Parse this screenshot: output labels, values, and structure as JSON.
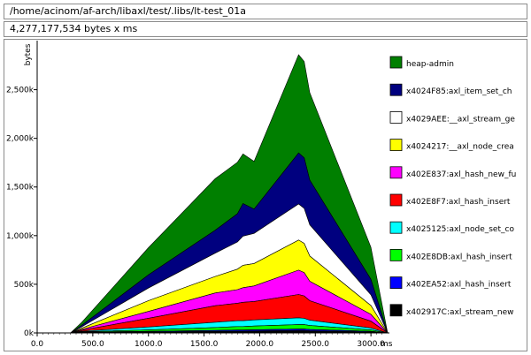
{
  "header": {
    "path": "/home/acinom/af-arch/libaxl/test/.libs/lt-test_01a",
    "total": "4,277,177,534 bytes x ms"
  },
  "colors": {
    "heap-admin": "#007f00",
    "x4024F85": "#00007f",
    "x4029AEE": "#ffffff",
    "x4024217": "#ffff00",
    "x402E837": "#ff00ff",
    "x402E8F7": "#ff0000",
    "x4025125": "#00ffff",
    "x402E8DB": "#00ff00",
    "x402EA52": "#0000ff",
    "x402917C": "#000000"
  },
  "chart_data": {
    "type": "area",
    "stacked": true,
    "title": "",
    "xlabel": "ms",
    "ylabel": "bytes",
    "xlim": [
      0,
      3150
    ],
    "ylim": [
      0,
      2950000
    ],
    "x_ticks": [
      "0.0",
      "500.0",
      "1000.0",
      "1500.0",
      "2000.0",
      "2500.0",
      "3000.0"
    ],
    "y_ticks": [
      "0k",
      "500k",
      "1,000k",
      "1,500k",
      "2,000k",
      "2,500k"
    ],
    "x_unit_label": "ms",
    "legend_position": "right",
    "x": [
      0,
      200,
      300,
      400,
      1000,
      1600,
      1800,
      1850,
      1950,
      2350,
      2400,
      2450,
      3000,
      3150
    ],
    "series": [
      {
        "name": "x402917C:axl_stream_new",
        "values": [
          0,
          0,
          0,
          5000,
          10000,
          15000,
          18000,
          18000,
          20000,
          25000,
          25000,
          22000,
          10000,
          0
        ]
      },
      {
        "name": "x402EA52:axl_hash_insert",
        "values": [
          0,
          0,
          0,
          3000,
          6000,
          10000,
          12000,
          12000,
          13000,
          15000,
          15000,
          14000,
          6000,
          0
        ]
      },
      {
        "name": "x402E8DB:axl_hash_insert",
        "values": [
          0,
          0,
          0,
          5000,
          15000,
          30000,
          35000,
          35000,
          38000,
          45000,
          45000,
          40000,
          15000,
          0
        ]
      },
      {
        "name": "x4025125:axl_node_set_co",
        "values": [
          0,
          0,
          0,
          5000,
          30000,
          55000,
          60000,
          60000,
          62000,
          70000,
          65000,
          55000,
          20000,
          0
        ]
      },
      {
        "name": "x402E8F7:axl_hash_insert",
        "values": [
          0,
          0,
          0,
          10000,
          90000,
          170000,
          180000,
          190000,
          190000,
          240000,
          230000,
          200000,
          70000,
          0
        ]
      },
      {
        "name": "x402E837:axl_hash_new_fu",
        "values": [
          0,
          0,
          0,
          8000,
          70000,
          130000,
          140000,
          150000,
          160000,
          250000,
          240000,
          200000,
          70000,
          0
        ]
      },
      {
        "name": "x4024217:__axl_node_crea",
        "values": [
          0,
          0,
          0,
          12000,
          110000,
          170000,
          210000,
          230000,
          230000,
          310000,
          300000,
          260000,
          90000,
          0
        ]
      },
      {
        "name": "x4029AEE:__axl_stream_ge",
        "values": [
          0,
          0,
          0,
          15000,
          130000,
          240000,
          280000,
          300000,
          310000,
          370000,
          360000,
          320000,
          110000,
          0
        ]
      },
      {
        "name": "x4024F85:axl_item_set_ch",
        "values": [
          0,
          0,
          0,
          15000,
          135000,
          235000,
          290000,
          335000,
          250000,
          525000,
          520000,
          460000,
          160000,
          0
        ]
      },
      {
        "name": "heap-admin",
        "values": [
          0,
          0,
          0,
          30000,
          280000,
          530000,
          530000,
          510000,
          490000,
          1010000,
          990000,
          900000,
          330000,
          0
        ]
      }
    ]
  },
  "legend": [
    {
      "key": "heap-admin",
      "label": "heap-admin"
    },
    {
      "key": "x4024F85",
      "label": "x4024F85:axl_item_set_ch"
    },
    {
      "key": "x4029AEE",
      "label": "x4029AEE:__axl_stream_ge"
    },
    {
      "key": "x4024217",
      "label": "x4024217:__axl_node_crea"
    },
    {
      "key": "x402E837",
      "label": "x402E837:axl_hash_new_fu"
    },
    {
      "key": "x402E8F7",
      "label": "x402E8F7:axl_hash_insert"
    },
    {
      "key": "x4025125",
      "label": "x4025125:axl_node_set_co"
    },
    {
      "key": "x402E8DB",
      "label": "x402E8DB:axl_hash_insert"
    },
    {
      "key": "x402EA52",
      "label": "x402EA52:axl_hash_insert"
    },
    {
      "key": "x402917C",
      "label": "x402917C:axl_stream_new"
    }
  ]
}
